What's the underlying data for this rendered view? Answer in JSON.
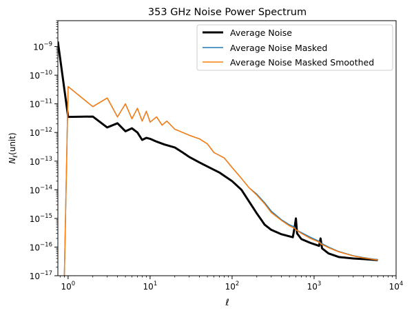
{
  "chart_data": {
    "type": "line",
    "title": "353 GHz Noise Power Spectrum",
    "xlabel": "ℓ",
    "ylabel": "N_ℓ(unit)",
    "xscale": "log",
    "yscale": "log",
    "xlim": [
      0.75,
      10000
    ],
    "ylim": [
      1e-17,
      8e-09
    ],
    "grid": false,
    "legend_position": "top-right",
    "x_ticks": [
      {
        "value": 1,
        "base": "10",
        "exp": "0"
      },
      {
        "value": 10,
        "base": "10",
        "exp": "1"
      },
      {
        "value": 100,
        "base": "10",
        "exp": "2"
      },
      {
        "value": 1000,
        "base": "10",
        "exp": "3"
      },
      {
        "value": 10000,
        "base": "10",
        "exp": "4"
      }
    ],
    "y_ticks": [
      {
        "value": 1e-17,
        "base": "10",
        "exp": "−17"
      },
      {
        "value": 1e-16,
        "base": "10",
        "exp": "−16"
      },
      {
        "value": 1e-15,
        "base": "10",
        "exp": "−15"
      },
      {
        "value": 1e-14,
        "base": "10",
        "exp": "−14"
      },
      {
        "value": 1e-13,
        "base": "10",
        "exp": "−13"
      },
      {
        "value": 1e-12,
        "base": "10",
        "exp": "−12"
      },
      {
        "value": 1e-11,
        "base": "10",
        "exp": "−11"
      },
      {
        "value": 1e-10,
        "base": "10",
        "exp": "−10"
      },
      {
        "value": 1e-09,
        "base": "10",
        "exp": "−9"
      }
    ],
    "series": [
      {
        "name": "Average Noise",
        "color": "#000000",
        "width": 3,
        "points": [
          [
            0.75,
            1.5e-09
          ],
          [
            1,
            3.5e-12
          ],
          [
            2,
            3.6e-12
          ],
          [
            3,
            1.5e-12
          ],
          [
            4,
            2.1e-12
          ],
          [
            5,
            1.1e-12
          ],
          [
            6,
            1.4e-12
          ],
          [
            7,
            1e-12
          ],
          [
            8,
            5.5e-13
          ],
          [
            9,
            6.5e-13
          ],
          [
            10,
            6e-13
          ],
          [
            12,
            4.8e-13
          ],
          [
            15,
            3.8e-13
          ],
          [
            20,
            3e-13
          ],
          [
            25,
            2e-13
          ],
          [
            30,
            1.4e-13
          ],
          [
            40,
            9e-14
          ],
          [
            50,
            6.5e-14
          ],
          [
            70,
            4e-14
          ],
          [
            100,
            2e-14
          ],
          [
            130,
            1e-14
          ],
          [
            160,
            4e-15
          ],
          [
            200,
            1.5e-15
          ],
          [
            250,
            6e-16
          ],
          [
            300,
            4e-16
          ],
          [
            400,
            2.8e-16
          ],
          [
            550,
            2.2e-16
          ],
          [
            580,
            5e-16
          ],
          [
            600,
            1e-15
          ],
          [
            620,
            3e-16
          ],
          [
            700,
            1.9e-16
          ],
          [
            900,
            1.4e-16
          ],
          [
            1150,
            1.1e-16
          ],
          [
            1200,
            2e-16
          ],
          [
            1250,
            9e-17
          ],
          [
            1500,
            6e-17
          ],
          [
            2000,
            4.5e-17
          ],
          [
            3000,
            4e-17
          ],
          [
            4000,
            3.8e-17
          ],
          [
            6000,
            3.5e-17
          ]
        ]
      },
      {
        "name": "Average Noise Masked",
        "color": "#1f77b4",
        "width": 1.5,
        "points": [
          [
            0.9,
            1e-17
          ],
          [
            1,
            4e-11
          ],
          [
            2,
            8e-12
          ],
          [
            3,
            1.6e-11
          ],
          [
            4,
            3.5e-12
          ],
          [
            5,
            1e-11
          ],
          [
            6,
            3e-12
          ],
          [
            7,
            7e-12
          ],
          [
            8,
            2.5e-12
          ],
          [
            9,
            5.5e-12
          ],
          [
            10,
            2.3e-12
          ],
          [
            12,
            3.5e-12
          ],
          [
            14,
            1.8e-12
          ],
          [
            16,
            2.5e-12
          ],
          [
            20,
            1.3e-12
          ],
          [
            25,
            1e-12
          ],
          [
            30,
            8e-13
          ],
          [
            40,
            6e-13
          ],
          [
            50,
            4e-13
          ],
          [
            60,
            2e-13
          ],
          [
            80,
            1.3e-13
          ],
          [
            100,
            6e-14
          ],
          [
            130,
            2.5e-14
          ],
          [
            160,
            1.2e-14
          ],
          [
            200,
            7e-15
          ],
          [
            250,
            3.5e-15
          ],
          [
            300,
            1.8e-15
          ],
          [
            400,
            9e-16
          ],
          [
            500,
            6e-16
          ],
          [
            580,
            5e-16
          ],
          [
            600,
            4e-16
          ],
          [
            700,
            3.2e-16
          ],
          [
            900,
            2.2e-16
          ],
          [
            1150,
            1.6e-16
          ],
          [
            1200,
            1.4e-16
          ],
          [
            1500,
            1e-16
          ],
          [
            2000,
            7e-17
          ],
          [
            3000,
            5e-17
          ],
          [
            4000,
            4.3e-17
          ],
          [
            6000,
            3.6e-17
          ]
        ]
      },
      {
        "name": "Average Noise Masked Smoothed",
        "color": "#ff7f0e",
        "width": 1.5,
        "points": [
          [
            0.9,
            1e-17
          ],
          [
            1,
            4e-11
          ],
          [
            2,
            8e-12
          ],
          [
            3,
            1.6e-11
          ],
          [
            4,
            3.5e-12
          ],
          [
            5,
            1e-11
          ],
          [
            6,
            3e-12
          ],
          [
            7,
            7e-12
          ],
          [
            8,
            2.5e-12
          ],
          [
            9,
            5.5e-12
          ],
          [
            10,
            2.3e-12
          ],
          [
            12,
            3.5e-12
          ],
          [
            14,
            1.8e-12
          ],
          [
            16,
            2.5e-12
          ],
          [
            20,
            1.3e-12
          ],
          [
            25,
            1e-12
          ],
          [
            30,
            8e-13
          ],
          [
            40,
            6e-13
          ],
          [
            50,
            4e-13
          ],
          [
            60,
            2e-13
          ],
          [
            80,
            1.3e-13
          ],
          [
            100,
            6e-14
          ],
          [
            130,
            2.5e-14
          ],
          [
            160,
            1.2e-14
          ],
          [
            200,
            6.5e-15
          ],
          [
            250,
            3.2e-15
          ],
          [
            300,
            1.6e-15
          ],
          [
            400,
            8.5e-16
          ],
          [
            500,
            5.5e-16
          ],
          [
            580,
            4.5e-16
          ],
          [
            600,
            4e-16
          ],
          [
            700,
            3e-16
          ],
          [
            900,
            2e-16
          ],
          [
            1150,
            1.5e-16
          ],
          [
            1200,
            1.3e-16
          ],
          [
            1500,
            9.5e-17
          ],
          [
            2000,
            6.8e-17
          ],
          [
            3000,
            4.9e-17
          ],
          [
            4000,
            4.2e-17
          ],
          [
            6000,
            3.5e-17
          ]
        ]
      }
    ]
  }
}
